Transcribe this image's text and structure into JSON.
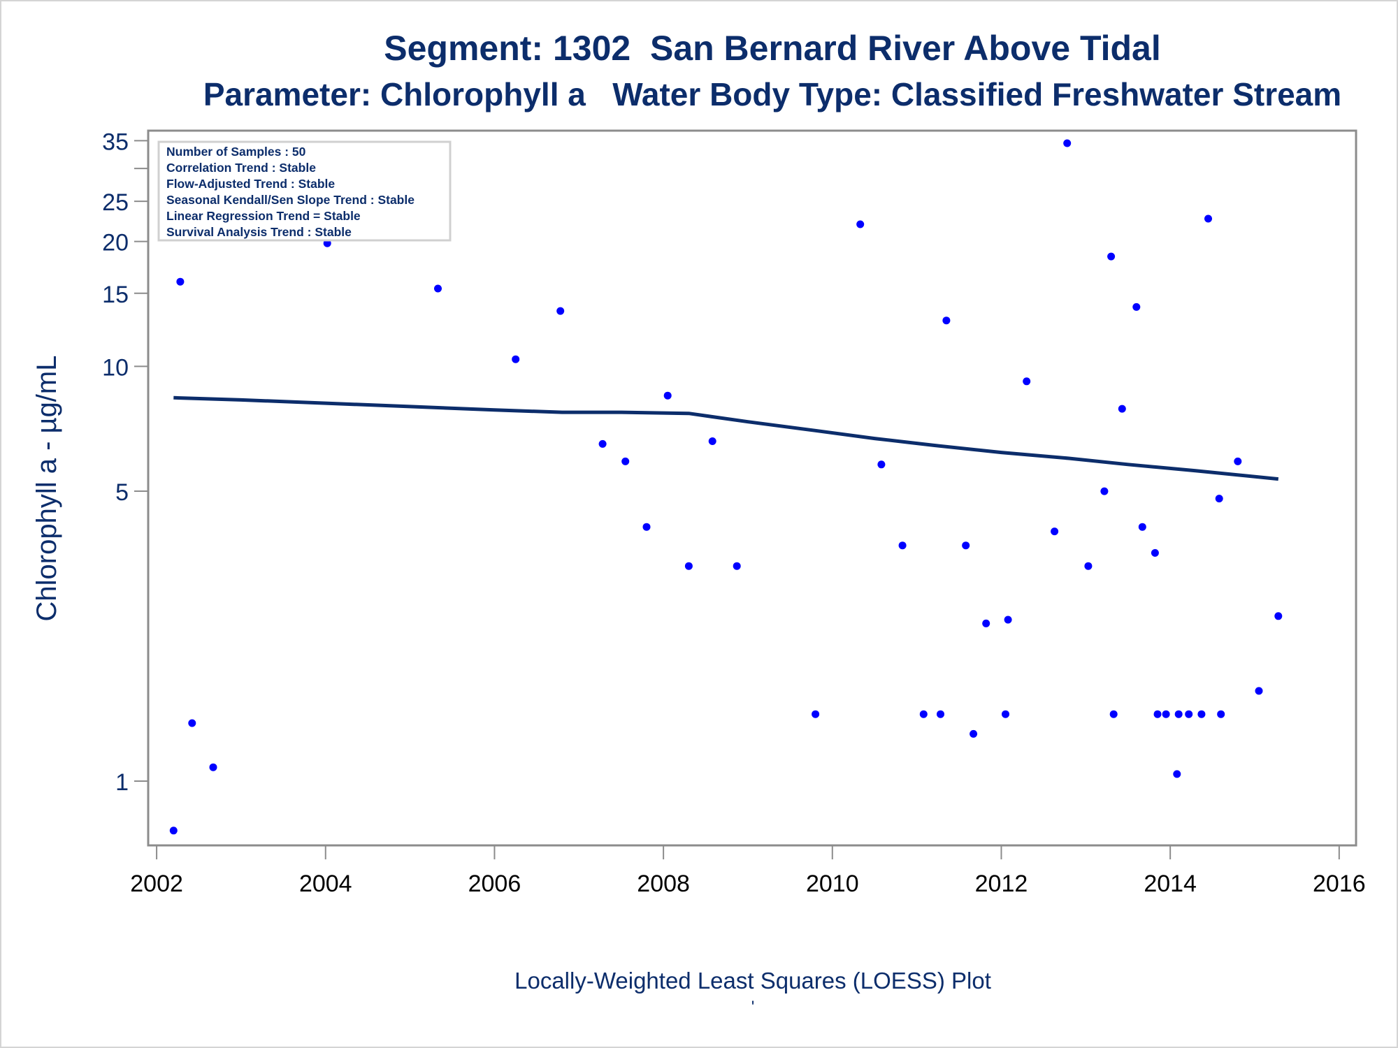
{
  "titles": {
    "line1": "Segment: 1302  San Bernard River Above Tidal",
    "line2": "Parameter: Chlorophyll a   Water Body Type: Classified Freshwater Stream"
  },
  "stats": [
    "Number of Samples : 50",
    "Correlation Trend : Stable",
    "Flow-Adjusted Trend : Stable",
    "Seasonal Kendall/Sen Slope Trend : Stable",
    "Linear Regression Trend = Stable",
    "Survival Analysis Trend : Stable"
  ],
  "colors": {
    "title": "#0c2d6b",
    "points": "#0000ff",
    "loess_line": "#0c2d6b",
    "axis": "#8c8c8c"
  },
  "chart_data": {
    "type": "scatter",
    "xlabel": "Locally-Weighted Least Squares (LOESS) Plot",
    "ylabel": "Chlorophyll a -  µg/mL",
    "xscale": "linear",
    "yscale": "log",
    "xlim": [
      2001.9,
      2016.2
    ],
    "ylim": [
      0.7,
      37
    ],
    "x_ticks": [
      2002,
      2004,
      2006,
      2008,
      2010,
      2012,
      2014,
      2016
    ],
    "y_ticks": [
      1,
      5,
      10,
      15,
      20,
      25,
      35
    ],
    "y_minor_ticks": [
      30
    ],
    "grid": false,
    "footnote": "'",
    "series": [
      {
        "kind": "points",
        "points": [
          [
            2002.2,
            0.76
          ],
          [
            2002.28,
            16.0
          ],
          [
            2002.42,
            1.38
          ],
          [
            2002.67,
            1.08
          ],
          [
            2004.02,
            19.8
          ],
          [
            2005.33,
            15.4
          ],
          [
            2006.25,
            10.4
          ],
          [
            2006.78,
            13.6
          ],
          [
            2007.28,
            6.5
          ],
          [
            2007.55,
            5.9
          ],
          [
            2007.8,
            4.1
          ],
          [
            2008.05,
            8.5
          ],
          [
            2008.3,
            3.3
          ],
          [
            2008.58,
            6.6
          ],
          [
            2008.87,
            3.3
          ],
          [
            2009.8,
            1.45
          ],
          [
            2010.33,
            22.0
          ],
          [
            2010.58,
            5.8
          ],
          [
            2010.83,
            3.7
          ],
          [
            2011.08,
            1.45
          ],
          [
            2011.28,
            1.45
          ],
          [
            2011.35,
            12.9
          ],
          [
            2011.58,
            3.7
          ],
          [
            2011.67,
            1.3
          ],
          [
            2011.82,
            2.4
          ],
          [
            2012.05,
            1.45
          ],
          [
            2012.08,
            2.45
          ],
          [
            2012.3,
            9.2
          ],
          [
            2012.63,
            4.0
          ],
          [
            2012.78,
            34.5
          ],
          [
            2013.03,
            3.3
          ],
          [
            2013.22,
            5.0
          ],
          [
            2013.3,
            18.4
          ],
          [
            2013.33,
            1.45
          ],
          [
            2013.43,
            7.9
          ],
          [
            2013.6,
            13.9
          ],
          [
            2013.67,
            4.1
          ],
          [
            2013.82,
            3.55
          ],
          [
            2013.85,
            1.45
          ],
          [
            2013.95,
            1.45
          ],
          [
            2014.08,
            1.04
          ],
          [
            2014.1,
            1.45
          ],
          [
            2014.22,
            1.45
          ],
          [
            2014.37,
            1.45
          ],
          [
            2014.45,
            22.7
          ],
          [
            2014.58,
            4.8
          ],
          [
            2014.6,
            1.45
          ],
          [
            2014.8,
            5.9
          ],
          [
            2015.05,
            1.65
          ],
          [
            2015.28,
            2.5
          ]
        ]
      },
      {
        "kind": "loess",
        "points": [
          [
            2002.2,
            8.4
          ],
          [
            2003.0,
            8.3
          ],
          [
            2004.0,
            8.15
          ],
          [
            2005.0,
            8.0
          ],
          [
            2006.0,
            7.85
          ],
          [
            2006.8,
            7.75
          ],
          [
            2007.5,
            7.75
          ],
          [
            2008.3,
            7.7
          ],
          [
            2009.0,
            7.35
          ],
          [
            2009.8,
            7.0
          ],
          [
            2010.5,
            6.7
          ],
          [
            2011.2,
            6.45
          ],
          [
            2012.0,
            6.2
          ],
          [
            2012.8,
            6.0
          ],
          [
            2013.5,
            5.8
          ],
          [
            2014.3,
            5.6
          ],
          [
            2015.28,
            5.35
          ]
        ]
      }
    ]
  }
}
